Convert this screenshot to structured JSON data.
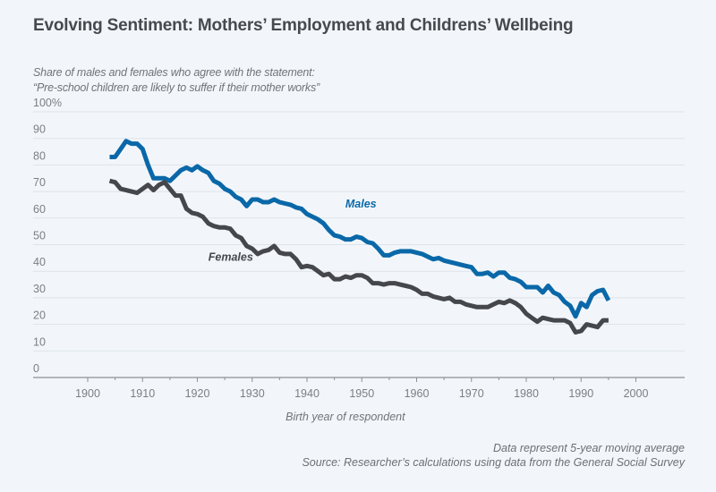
{
  "chart_data": {
    "type": "line",
    "title": "Evolving Sentiment: Mothers’ Employment and Childrens’ Wellbeing",
    "subtitle_lines": [
      "Share of males and females who agree with the statement:",
      "“Pre-school children are likely to suffer if their mother works”"
    ],
    "xlabel": "Birth year of respondent",
    "ylabel": "",
    "xlim": [
      1890,
      2009
    ],
    "ylim": [
      0,
      100
    ],
    "x_ticks_major": [
      1900,
      1910,
      1920,
      1930,
      1940,
      1950,
      1960,
      1970,
      1980,
      1990,
      2000
    ],
    "x_ticks_minor": [
      1905,
      1915,
      1925,
      1935,
      1945,
      1955,
      1965,
      1975,
      1985,
      1995
    ],
    "y_ticks": [
      0,
      10,
      20,
      30,
      40,
      50,
      60,
      70,
      80,
      90,
      100
    ],
    "y_tick_labels": [
      "0",
      "10",
      "20",
      "30",
      "40",
      "50",
      "60",
      "70",
      "80",
      "90",
      "100%"
    ],
    "grid": true,
    "legend": "inline-labels",
    "x": [
      1904,
      1905,
      1906,
      1907,
      1908,
      1909,
      1910,
      1911,
      1912,
      1913,
      1914,
      1915,
      1916,
      1917,
      1918,
      1919,
      1920,
      1921,
      1922,
      1923,
      1924,
      1925,
      1926,
      1927,
      1928,
      1929,
      1930,
      1931,
      1932,
      1933,
      1934,
      1935,
      1936,
      1937,
      1938,
      1939,
      1940,
      1941,
      1942,
      1943,
      1944,
      1945,
      1946,
      1947,
      1948,
      1949,
      1950,
      1951,
      1952,
      1953,
      1954,
      1955,
      1956,
      1957,
      1958,
      1959,
      1960,
      1961,
      1962,
      1963,
      1964,
      1965,
      1966,
      1967,
      1968,
      1969,
      1970,
      1971,
      1972,
      1973,
      1974,
      1975,
      1976,
      1977,
      1978,
      1979,
      1980,
      1981,
      1982,
      1983,
      1984,
      1985,
      1986,
      1987,
      1988,
      1989,
      1990,
      1991,
      1992,
      1993,
      1994,
      1995
    ],
    "series": [
      {
        "name": "Males",
        "color": "#0a68a8",
        "label_year": 1947,
        "label_value": 64,
        "values": [
          83,
          83,
          86,
          89,
          88,
          88,
          86,
          80,
          75,
          75,
          75,
          74,
          76,
          78,
          79,
          78,
          79.5,
          78,
          77,
          74,
          73,
          71,
          70,
          68,
          67,
          64.5,
          67,
          67,
          66,
          66,
          67,
          66,
          65.5,
          65,
          64,
          63.5,
          61.5,
          60.5,
          59.5,
          58,
          55.5,
          53.5,
          53,
          52,
          52,
          53,
          52.5,
          51,
          50.5,
          48.5,
          46,
          46,
          47,
          47.5,
          47.5,
          47.5,
          47,
          46.5,
          45.5,
          44.5,
          45,
          44,
          43.5,
          43,
          42.5,
          42,
          41.5,
          39,
          39,
          39.5,
          38,
          39.5,
          39.5,
          37.5,
          37,
          36,
          34,
          34,
          34,
          32,
          34.5,
          32,
          31,
          28.5,
          27,
          23,
          28,
          26.5,
          31,
          32.5,
          33,
          29
        ]
      },
      {
        "name": "Females",
        "color": "#45474b",
        "label_year": 1922,
        "label_value": 44,
        "values": [
          74,
          73.5,
          71,
          70.5,
          70,
          69.5,
          71,
          72.5,
          70.5,
          72.5,
          73.5,
          71,
          68.5,
          68.5,
          63.5,
          62,
          61.5,
          60.5,
          58,
          57,
          56.5,
          56.5,
          56,
          53.5,
          52.5,
          49.5,
          48.5,
          46.5,
          47.5,
          48,
          49.5,
          47,
          46.5,
          46.5,
          44.5,
          41.5,
          42,
          41.5,
          40,
          38.5,
          39,
          37,
          37,
          38,
          37.5,
          38.5,
          38.5,
          37.5,
          35.5,
          35.5,
          35,
          35.5,
          35.5,
          35,
          34.5,
          34,
          33,
          31.5,
          31.5,
          30.5,
          30,
          29.5,
          30,
          28.5,
          28.5,
          27.5,
          27,
          26.5,
          26.5,
          26.5,
          27.5,
          28.5,
          28,
          29,
          28,
          26.5,
          24,
          22.5,
          21,
          22.5,
          22,
          21.5,
          21.5,
          21.5,
          20.5,
          17,
          17.5,
          20,
          19.5,
          19,
          21.5,
          21.5
        ]
      }
    ],
    "notes": [
      "Data represent 5-year moving average",
      "Source: Researcher’s calculations using data from the General Social Survey"
    ]
  }
}
